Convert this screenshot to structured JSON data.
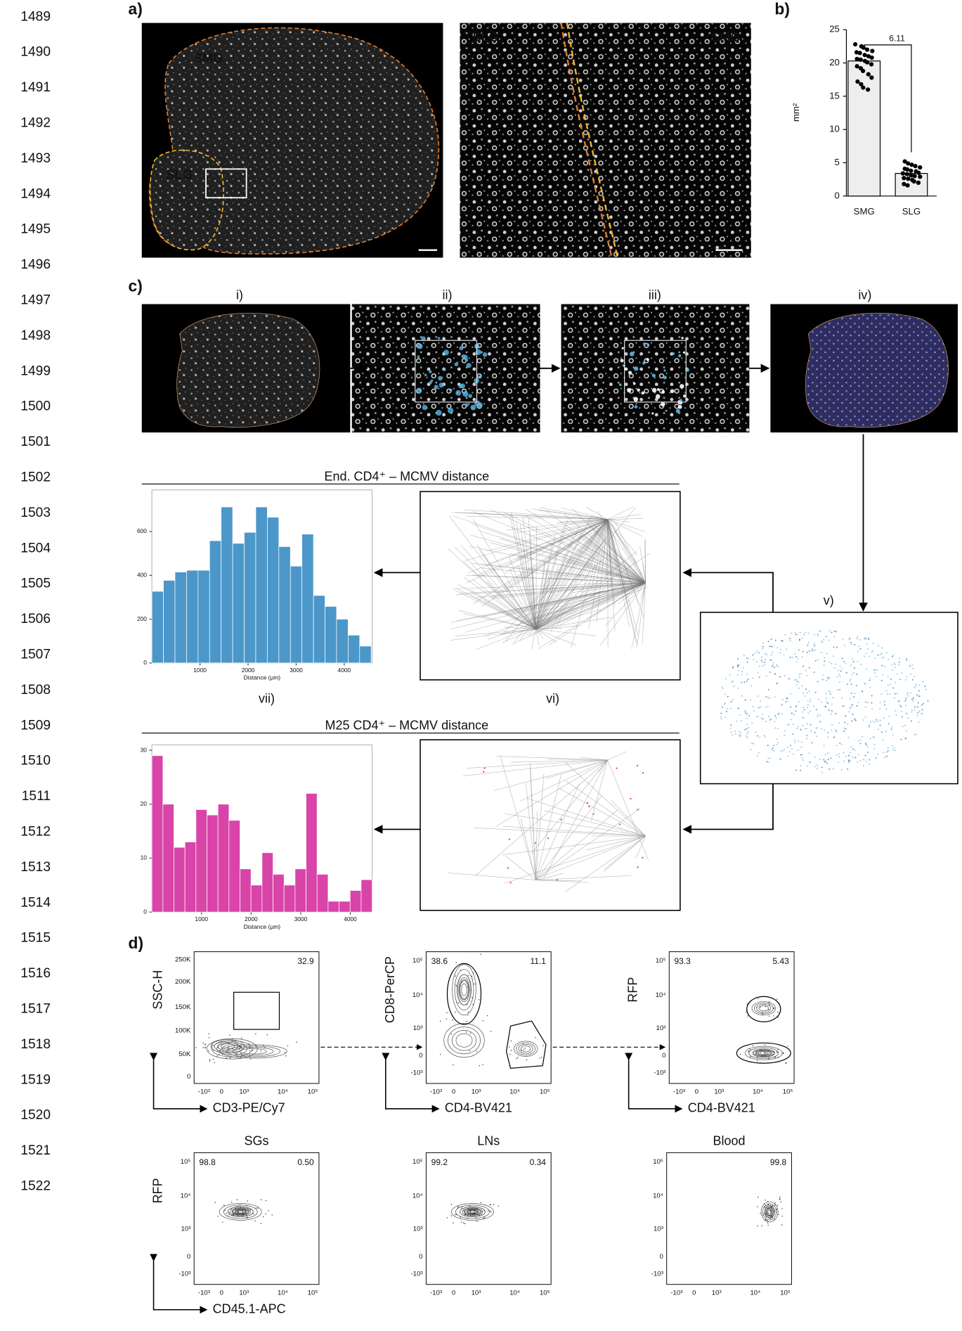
{
  "line_numbers": [
    1489,
    1490,
    1491,
    1492,
    1493,
    1494,
    1495,
    1496,
    1497,
    1498,
    1499,
    1500,
    1501,
    1502,
    1503,
    1504,
    1505,
    1506,
    1507,
    1508,
    1509,
    1510,
    1511,
    1512,
    1513,
    1514,
    1515,
    1516,
    1517,
    1518,
    1519,
    1520,
    1521,
    1522
  ],
  "panel_labels": [
    "a)",
    "b)",
    "c)",
    "d)"
  ],
  "panel_a": {
    "left_labels": [
      "SMG",
      "SLG"
    ],
    "right_labels": [
      "SLG",
      "SMG"
    ]
  },
  "panel_c": {
    "steps": [
      "i)",
      "ii)",
      "iii)",
      "iv)",
      "v)",
      "vi)",
      "vii)"
    ]
  },
  "chart_data": [
    {
      "type": "bar",
      "categories": [
        "SMG",
        "SLG"
      ],
      "values": [
        20.3,
        3.4
      ],
      "color": "#eeeeee",
      "points": [
        [
          22.8,
          22.5,
          22.3,
          22.0,
          21.8,
          21.6,
          21.5,
          21.2,
          21.0,
          20.8,
          20.6,
          20.5,
          20.3,
          20.1,
          19.8,
          19.5,
          19.2,
          18.8,
          18.3,
          17.8,
          17.2,
          16.8,
          16.3,
          16.0
        ],
        [
          5.2,
          4.9,
          4.7,
          4.5,
          4.3,
          4.1,
          4.0,
          3.8,
          3.7,
          3.5,
          3.4,
          3.3,
          3.1,
          3.0,
          2.9,
          2.7,
          2.6,
          2.4,
          2.2,
          2.0,
          1.8,
          1.6
        ]
      ],
      "ylabel": "mm²",
      "annotation": "6.11",
      "ylim": [
        0,
        25
      ],
      "yticks": [
        0,
        5,
        10,
        15,
        20,
        25
      ]
    },
    {
      "type": "histogram",
      "title": "End. CD4⁺ – MCMV distance",
      "xlabel": "Distance (μm)",
      "color": "#4c97c9",
      "bins": [
        0,
        240,
        480,
        720,
        960,
        1200,
        1440,
        1680,
        1920,
        2160,
        2400,
        2640,
        2880,
        3120,
        3360,
        3600,
        3840,
        4080,
        4320,
        4560
      ],
      "values": [
        327,
        377,
        415,
        423,
        423,
        558,
        712,
        546,
        596,
        712,
        665,
        531,
        442,
        588,
        308,
        258,
        200,
        127,
        77
      ],
      "xlim": [
        0,
        4580
      ],
      "xticks": [
        1000,
        2000,
        3000,
        4000
      ],
      "ylim": [
        0,
        790
      ],
      "yticks": [
        0,
        200,
        400,
        600
      ]
    },
    {
      "type": "histogram",
      "title": "M25 CD4⁺ – MCMV distance",
      "xlabel": "Distance (μm)",
      "color": "#d944a9",
      "bins": [
        0,
        222,
        444,
        666,
        888,
        1110,
        1332,
        1554,
        1776,
        1998,
        2220,
        2442,
        2664,
        2886,
        3108,
        3330,
        3552,
        3774,
        3996,
        4218,
        4440
      ],
      "values": [
        29,
        20,
        12,
        13,
        19,
        18,
        20,
        17,
        8,
        5,
        11,
        7,
        5,
        8,
        22,
        7,
        2,
        2,
        4,
        6
      ],
      "xlim": [
        0,
        4440
      ],
      "xticks": [
        1000,
        2000,
        3000,
        4000
      ],
      "ylim": [
        0,
        31
      ],
      "yticks": [
        0,
        10,
        20,
        30
      ]
    }
  ],
  "flow": {
    "plots": [
      {
        "ylabel": "SSC-H",
        "xlabel": "CD3-PE/Cy7",
        "gates": [
          "32.9"
        ],
        "xticks": [
          "-10³",
          "0",
          "10³",
          "10⁴",
          "10⁵"
        ],
        "yticks": [
          "250K",
          "200K",
          "150K",
          "100K",
          "50K",
          "0"
        ]
      },
      {
        "ylabel": "CD8-PerCP",
        "xlabel": "CD4-BV421",
        "gates": [
          "38.6",
          "11.1"
        ],
        "xticks": [
          "-10³",
          "0",
          "10³",
          "10⁴",
          "10⁵"
        ],
        "yticks": [
          "10⁵",
          "10⁴",
          "10³",
          "0",
          "-10³"
        ]
      },
      {
        "ylabel": "RFP",
        "xlabel": "CD4-BV421",
        "gates": [
          "93.3",
          "5.43"
        ],
        "xticks": [
          "-10³",
          "0",
          "10³",
          "10⁴",
          "10⁵"
        ],
        "yticks": [
          "10⁵",
          "10⁴",
          "10³",
          "0",
          "-10³"
        ]
      },
      {
        "title": "SGs",
        "ylabel": "RFP",
        "xlabel": "CD45.1-APC",
        "gates": [
          "98.8",
          "0.50"
        ],
        "xticks": [
          "-10³",
          "0",
          "10³",
          "10⁴",
          "10⁵"
        ],
        "yticks": [
          "10⁵",
          "10⁴",
          "10³",
          "0",
          "-10³"
        ]
      },
      {
        "title": "LNs",
        "gates": [
          "99.2",
          "0.34"
        ],
        "xticks": [
          "-10³",
          "0",
          "10³",
          "10⁴",
          "10⁵"
        ],
        "yticks": [
          "10⁵",
          "10⁴",
          "10³",
          "0",
          "-10³"
        ]
      },
      {
        "title": "Blood",
        "gates": [
          "99.8"
        ],
        "xticks": [
          "-10³",
          "0",
          "10³",
          "10⁴",
          "10⁵"
        ],
        "yticks": [
          "10⁵",
          "10⁴",
          "10³",
          "0",
          "-10³"
        ]
      }
    ]
  }
}
